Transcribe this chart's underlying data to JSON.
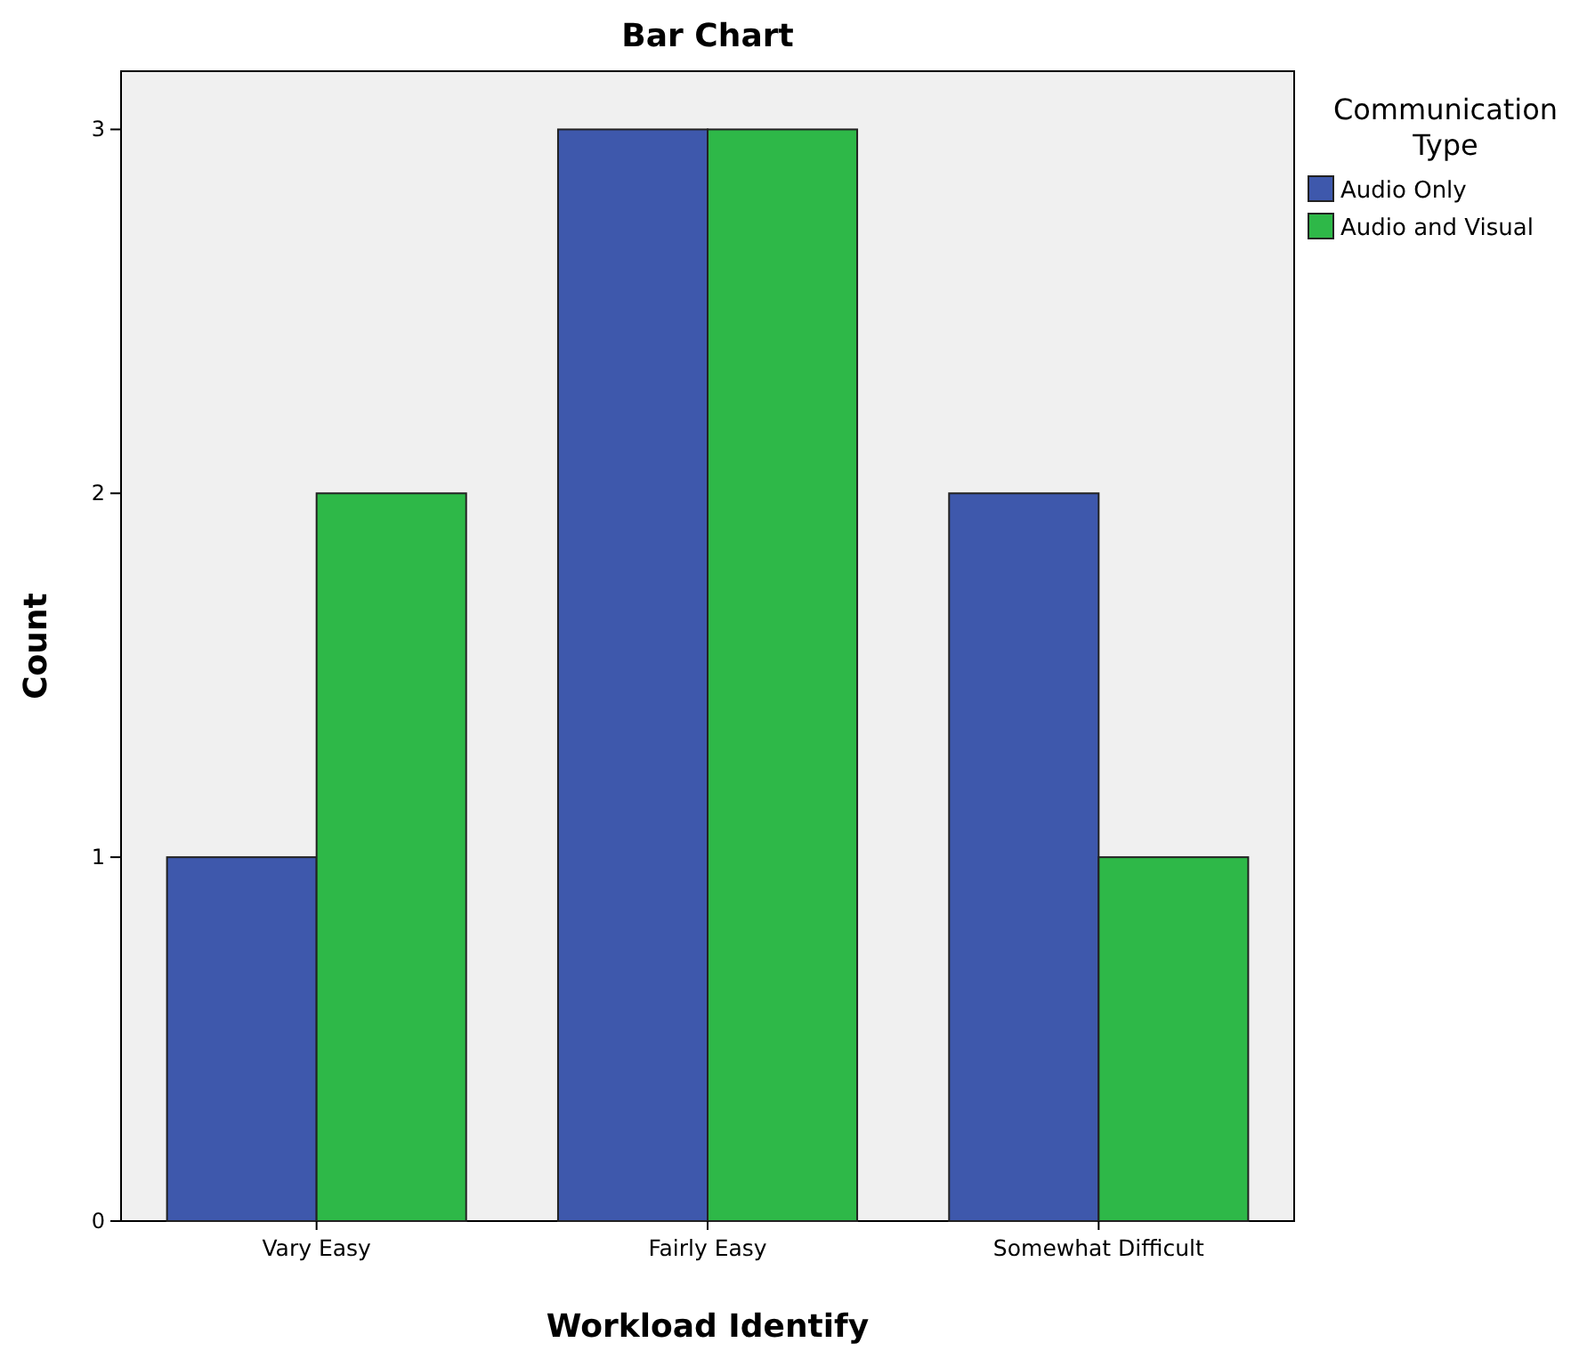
{
  "chart_data": {
    "type": "bar",
    "title": "Bar Chart",
    "xlabel": "Workload Identify",
    "ylabel": "Count",
    "legend_title": "Communication Type",
    "categories": [
      "Vary Easy",
      "Fairly Easy",
      "Somewhat Difficult"
    ],
    "series": [
      {
        "name": "Audio Only",
        "color": "#3e58ac",
        "values": [
          1,
          3,
          2
        ]
      },
      {
        "name": "Audio and Visual",
        "color": "#2eb848",
        "values": [
          2,
          3,
          1
        ]
      }
    ],
    "ylim": [
      0,
      3.16
    ],
    "yticks": [
      0,
      1,
      2,
      3
    ],
    "grid": false,
    "legend": "top right"
  }
}
